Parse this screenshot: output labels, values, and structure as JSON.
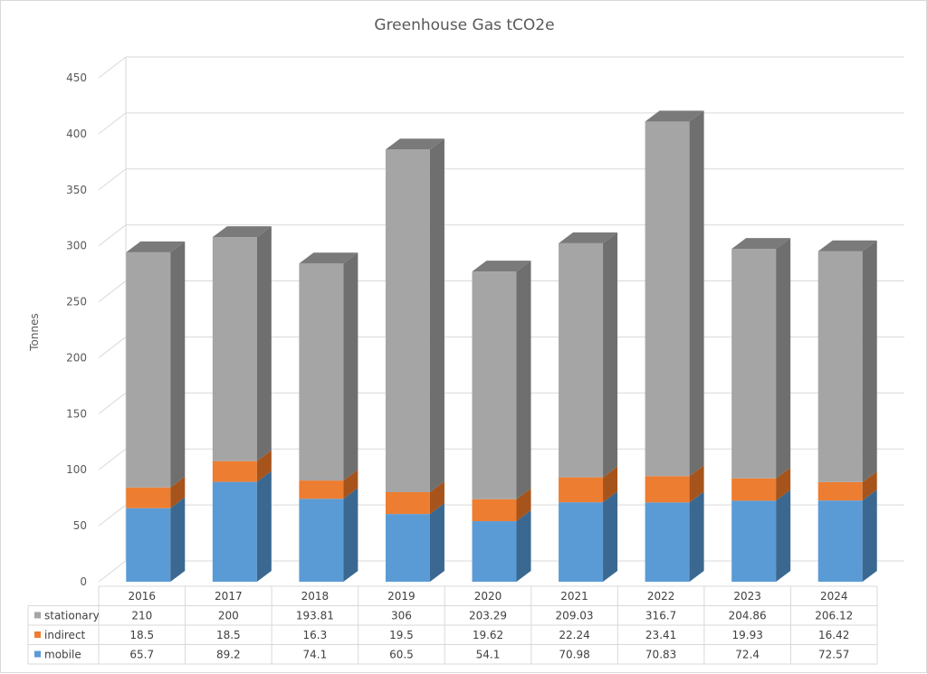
{
  "chart_data": {
    "type": "bar",
    "stacked": true,
    "style": "3d",
    "title": "Greenhouse Gas tCO2e",
    "xlabel": "",
    "ylabel": "Tonnes",
    "ylim": [
      0,
      450
    ],
    "yticks": [
      0,
      50,
      100,
      150,
      200,
      250,
      300,
      350,
      400,
      450
    ],
    "grid": true,
    "legend": "data-table",
    "categories": [
      "2016",
      "2017",
      "2018",
      "2019",
      "2020",
      "2021",
      "2022",
      "2023",
      "2024"
    ],
    "series": [
      {
        "name": "stationary",
        "color": "#a5a5a5",
        "side_color": "#6f6f6f",
        "labels": [
          "210",
          "200",
          "193.81",
          "306",
          "203.29",
          "209.03",
          "316.7",
          "204.86",
          "206.12"
        ],
        "values": [
          210,
          200,
          193.81,
          306,
          203.29,
          209.03,
          316.7,
          204.86,
          206.12
        ]
      },
      {
        "name": "indirect",
        "color": "#ed7d31",
        "side_color": "#a6541b",
        "labels": [
          "18.5",
          "18.5",
          "16.3",
          "19.5",
          "19.62",
          "22.24",
          "23.41",
          "19.93",
          "16.42"
        ],
        "values": [
          18.5,
          18.5,
          16.3,
          19.5,
          19.62,
          22.24,
          23.41,
          19.93,
          16.42
        ]
      },
      {
        "name": "mobile",
        "color": "#5b9bd5",
        "side_color": "#3a6890",
        "labels": [
          "65.7",
          "89.2",
          "74.1",
          "60.5",
          "54.1",
          "70.98",
          "70.83",
          "72.4",
          "72.57"
        ],
        "values": [
          65.7,
          89.2,
          74.1,
          60.5,
          54.1,
          70.98,
          70.83,
          72.4,
          72.57
        ]
      }
    ]
  }
}
